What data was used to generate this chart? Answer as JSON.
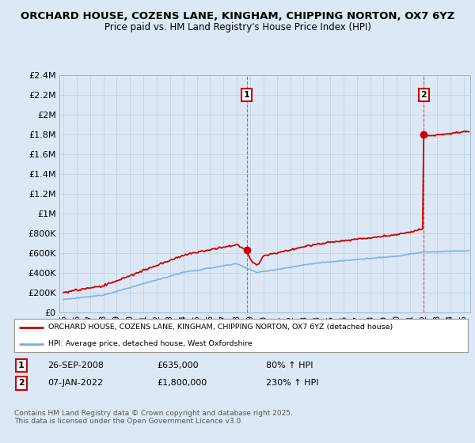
{
  "title": "ORCHARD HOUSE, COZENS LANE, KINGHAM, CHIPPING NORTON, OX7 6YZ",
  "subtitle": "Price paid vs. HM Land Registry's House Price Index (HPI)",
  "legend_line1": "ORCHARD HOUSE, COZENS LANE, KINGHAM, CHIPPING NORTON, OX7 6YZ (detached house)",
  "legend_line2": "HPI: Average price, detached house, West Oxfordshire",
  "sale1_date": "26-SEP-2008",
  "sale1_price": "£635,000",
  "sale1_hpi": "80% ↑ HPI",
  "sale2_date": "07-JAN-2022",
  "sale2_price": "£1,800,000",
  "sale2_hpi": "230% ↑ HPI",
  "footer": "Contains HM Land Registry data © Crown copyright and database right 2025.\nThis data is licensed under the Open Government Licence v3.0.",
  "red_color": "#cc0000",
  "blue_color": "#7aadd4",
  "background_color": "#dce8f5",
  "plot_bg_color": "#dce8f5",
  "grid_color": "#b0c8e0",
  "ylim": [
    0,
    2400000
  ],
  "yticks": [
    0,
    200000,
    400000,
    600000,
    800000,
    1000000,
    1200000,
    1400000,
    1600000,
    1800000,
    2000000,
    2200000,
    2400000
  ],
  "xlim_start": 1994.7,
  "xlim_end": 2025.5,
  "sale1_x": 2008.74,
  "sale1_y": 635000,
  "sale2_x": 2022.02,
  "sale2_y": 1800000
}
